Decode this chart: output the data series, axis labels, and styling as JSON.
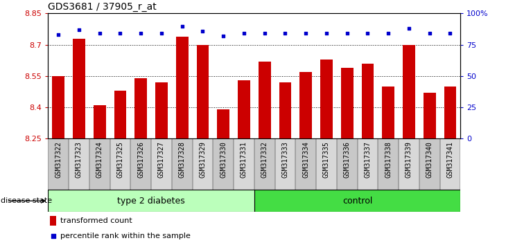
{
  "title": "GDS3681 / 37905_r_at",
  "samples": [
    "GSM317322",
    "GSM317323",
    "GSM317324",
    "GSM317325",
    "GSM317326",
    "GSM317327",
    "GSM317328",
    "GSM317329",
    "GSM317330",
    "GSM317331",
    "GSM317332",
    "GSM317333",
    "GSM317334",
    "GSM317335",
    "GSM317336",
    "GSM317337",
    "GSM317338",
    "GSM317339",
    "GSM317340",
    "GSM317341"
  ],
  "bar_values": [
    8.55,
    8.73,
    8.41,
    8.48,
    8.54,
    8.52,
    8.74,
    8.7,
    8.39,
    8.53,
    8.62,
    8.52,
    8.57,
    8.63,
    8.59,
    8.61,
    8.5,
    8.7,
    8.47,
    8.5
  ],
  "percentile_values": [
    83,
    87,
    84,
    84,
    84,
    84,
    90,
    86,
    82,
    84,
    84,
    84,
    84,
    84,
    84,
    84,
    84,
    88,
    84,
    84
  ],
  "ymin": 8.25,
  "ymax": 8.85,
  "yticks": [
    8.25,
    8.4,
    8.55,
    8.7,
    8.85
  ],
  "right_yticks": [
    0,
    25,
    50,
    75,
    100
  ],
  "right_ytick_labels": [
    "0",
    "25",
    "50",
    "75",
    "100%"
  ],
  "bar_color": "#CC0000",
  "dot_color": "#0000CC",
  "grid_color": "#000000",
  "type2_diabetes_count": 10,
  "control_count": 10,
  "group1_label": "type 2 diabetes",
  "group2_label": "control",
  "group1_color": "#BBFFBB",
  "group2_color": "#44DD44",
  "disease_state_label": "disease state",
  "legend_bar_label": "transformed count",
  "legend_dot_label": "percentile rank within the sample",
  "bar_width": 0.6,
  "tick_label_fontsize": 7,
  "axis_label_color_left": "#CC0000",
  "axis_label_color_right": "#0000CC"
}
